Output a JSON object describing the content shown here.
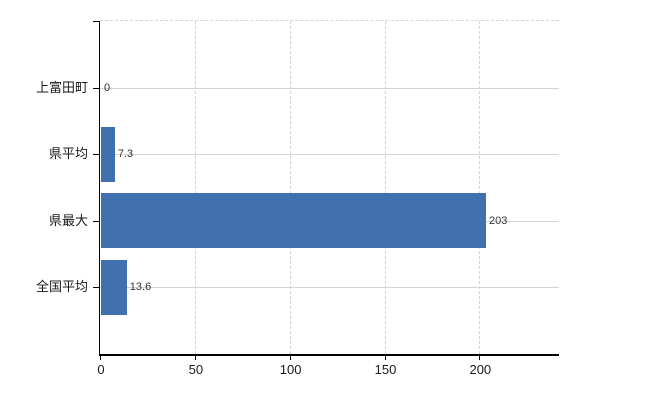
{
  "chart_data": {
    "type": "bar",
    "orientation": "horizontal",
    "title": "",
    "xlabel": "",
    "ylabel": "",
    "categories": [
      "上富田町",
      "県平均",
      "県最大",
      "全国平均"
    ],
    "values": [
      0,
      7.3,
      203,
      13.6
    ],
    "value_labels": [
      "0",
      "7.3",
      "203",
      "13.6"
    ],
    "xlim": [
      0,
      242
    ],
    "x_ticks": [
      0,
      50,
      100,
      150,
      200
    ],
    "x_tick_labels": [
      "0",
      "50",
      "100",
      "150",
      "200"
    ],
    "legend": "none",
    "grid": {
      "horizontal_lines_at_category_centers": true,
      "vertical_lines_dashed_at_x_ticks": true,
      "dashed_top_border": true
    },
    "colors": {
      "bar": "#4070b0",
      "axis": "#000000",
      "h_gridline": "#cdd9cb",
      "v_gridline": "#d5d2da",
      "top_border": "#d5d2da",
      "value_label": "#333333",
      "tick_label": "#1a1a1a",
      "background": "#ffffff"
    }
  }
}
